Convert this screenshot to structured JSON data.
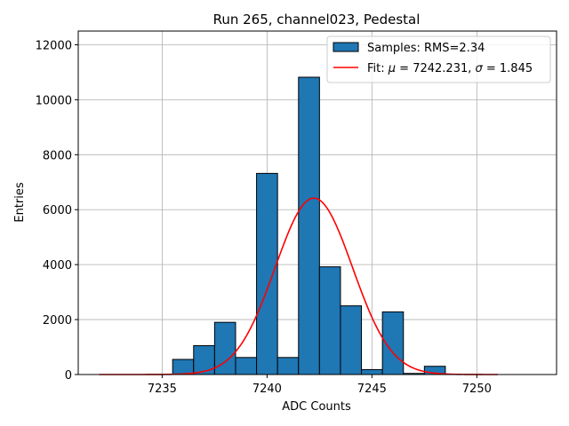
{
  "chart_data": {
    "type": "bar",
    "title": "Run 265, channel023, Pedestal",
    "xlabel": "ADC Counts",
    "ylabel": "Entries",
    "xlim": [
      7231.0,
      7253.8
    ],
    "ylim": [
      0,
      12500
    ],
    "xticks": [
      7235,
      7240,
      7245,
      7250
    ],
    "yticks": [
      0,
      2000,
      4000,
      6000,
      8000,
      10000,
      12000
    ],
    "grid": true,
    "legend_position": "top-right",
    "bin_width": 1,
    "bars": [
      {
        "x": 7236,
        "value": 550
      },
      {
        "x": 7237,
        "value": 1050
      },
      {
        "x": 7238,
        "value": 1900
      },
      {
        "x": 7239,
        "value": 620
      },
      {
        "x": 7240,
        "value": 7320
      },
      {
        "x": 7241,
        "value": 620
      },
      {
        "x": 7242,
        "value": 10820
      },
      {
        "x": 7243,
        "value": 3920
      },
      {
        "x": 7244,
        "value": 2500
      },
      {
        "x": 7245,
        "value": 180
      },
      {
        "x": 7246,
        "value": 2280
      },
      {
        "x": 7247,
        "value": 40
      },
      {
        "x": 7248,
        "value": 300
      }
    ],
    "fit": {
      "mu": 7242.231,
      "sigma": 1.845,
      "amplitude": 6420,
      "x_range": [
        7232,
        7251
      ]
    },
    "legend": {
      "samples_label": "Samples: RMS=2.34",
      "fit_label_prefix": "Fit: ",
      "fit_mu_symbol": "μ",
      "fit_mu_value": " = 7242.231, ",
      "fit_sigma_symbol": "σ",
      "fit_sigma_value": " = 1.845"
    },
    "colors": {
      "bar_fill": "#1f77b4",
      "bar_edge": "#000000",
      "fit_line": "#ff0000",
      "grid": "#b0b0b0"
    }
  }
}
